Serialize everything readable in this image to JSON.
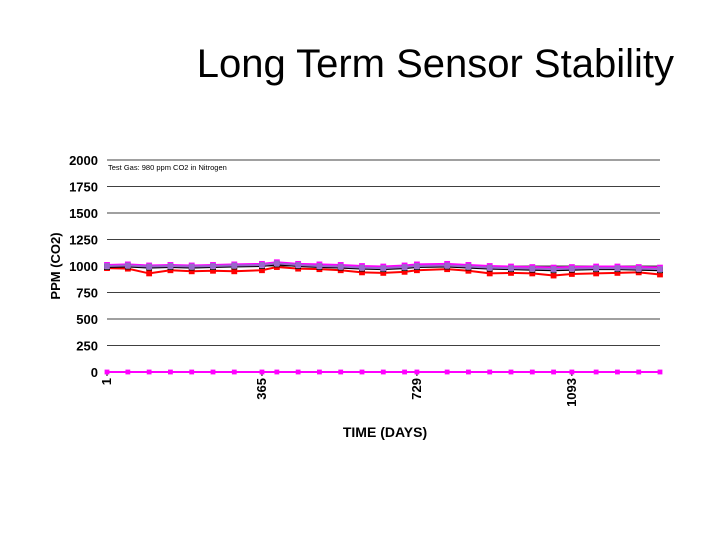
{
  "slide": {
    "title": "Long Term Sensor Stability"
  },
  "colors": {
    "series_red": "#ff0000",
    "series_magenta": "#ff00ff",
    "series_black": "#000000",
    "series_purple": "#9966cc",
    "gridline": "#000000"
  },
  "chart_data": {
    "type": "line",
    "title": "",
    "annotation": "Test Gas: 980 ppm CO2 in Nitrogen",
    "xlabel": "TIME (DAYS)",
    "ylabel": "PPM (CO2)",
    "xlim": [
      1,
      1300
    ],
    "ylim": [
      0,
      2000
    ],
    "x_ticks": [
      "1",
      "365",
      "729",
      "1093"
    ],
    "x_tick_values": [
      1,
      365,
      729,
      1093
    ],
    "y_ticks": [
      "0",
      "250",
      "500",
      "750",
      "1000",
      "1250",
      "1500",
      "1750",
      "2000"
    ],
    "y_tick_values": [
      0,
      250,
      500,
      750,
      1000,
      1250,
      1500,
      1750,
      2000
    ],
    "grid": "horizontal",
    "legend": "none",
    "x": [
      1,
      50,
      100,
      150,
      200,
      250,
      300,
      365,
      400,
      450,
      500,
      550,
      600,
      650,
      700,
      729,
      800,
      850,
      900,
      950,
      1000,
      1050,
      1093,
      1150,
      1200,
      1250,
      1300
    ],
    "series": [
      {
        "values": [
          980,
          975,
          930,
          960,
          950,
          955,
          950,
          960,
          990,
          975,
          970,
          960,
          940,
          935,
          945,
          960,
          970,
          955,
          930,
          935,
          930,
          910,
          925,
          930,
          935,
          940,
          920
        ]
      },
      {
        "values": [
          1010,
          1015,
          1005,
          1010,
          1005,
          1010,
          1015,
          1020,
          1035,
          1020,
          1015,
          1010,
          1000,
          995,
          1005,
          1015,
          1020,
          1010,
          1000,
          995,
          990,
          985,
          990,
          995,
          995,
          990,
          985
        ]
      },
      {
        "values": [
          990,
          995,
          985,
          990,
          985,
          990,
          995,
          1000,
          1015,
          1000,
          990,
          985,
          975,
          970,
          980,
          990,
          995,
          985,
          975,
          970,
          965,
          960,
          965,
          970,
          970,
          965,
          960
        ]
      },
      {
        "values": [
          1000,
          1005,
          995,
          1000,
          995,
          1000,
          1005,
          1010,
          1025,
          1010,
          1000,
          995,
          985,
          980,
          990,
          1000,
          1005,
          995,
          985,
          980,
          975,
          970,
          975,
          980,
          980,
          975,
          970
        ]
      },
      {
        "values": [
          0,
          0,
          0,
          0,
          0,
          0,
          0,
          0,
          0,
          0,
          0,
          0,
          0,
          0,
          0,
          0,
          0,
          0,
          0,
          0,
          0,
          0,
          0,
          0,
          0,
          0,
          0
        ]
      }
    ]
  }
}
